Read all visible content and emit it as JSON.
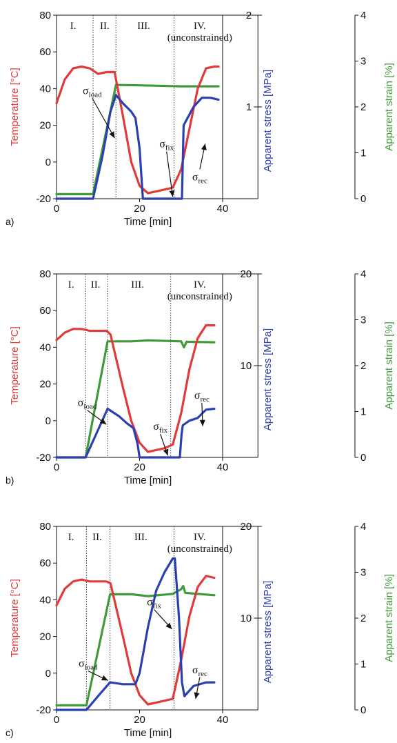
{
  "colors": {
    "temperature": "#e03a3a",
    "stress": "#2b3fb0",
    "strain": "#3f9a3a",
    "axis": "#111111"
  },
  "shared": {
    "xlabel": "Time [min]",
    "ylabel_left": "Temperature [°C]",
    "ylabel_stress": "Apparent stress [MPa]",
    "ylabel_strain": "Apparent strain [%]",
    "sigma": "σ",
    "sub_load": "load",
    "sub_fix": "fix",
    "sub_rec": "rec"
  },
  "chart_data": [
    {
      "type": "line",
      "panel_label": "a)",
      "xlabel": "Time [min]",
      "ylabel": "Temperature [°C]",
      "xlim": [
        0,
        40
      ],
      "ylim": [
        -20,
        80
      ],
      "x_ticks": [
        0,
        20,
        40
      ],
      "y_ticks": [
        -20,
        0,
        20,
        40,
        60,
        80
      ],
      "stress_axis": {
        "label": "Apparent stress [MPa]",
        "range": [
          0,
          2
        ],
        "ticks": [
          1,
          2
        ]
      },
      "strain_axis": {
        "label": "Apparent strain [%]",
        "range": [
          0,
          4
        ],
        "ticks": [
          0,
          1,
          2,
          3,
          4
        ]
      },
      "phases": [
        {
          "label": "I.",
          "x": 4
        },
        {
          "label": "II.",
          "x": 11.6
        },
        {
          "label": "III.",
          "x": 21
        },
        {
          "label": "IV.",
          "x": 34.5,
          "note": "(unconstrained)"
        }
      ],
      "phase_boundaries": [
        8.8,
        14.3,
        28.3
      ],
      "series": [
        {
          "axis": "temperature",
          "x": [
            0,
            2,
            4,
            6,
            8,
            10,
            12,
            14,
            16,
            18,
            20,
            22,
            24,
            26,
            28,
            30,
            32,
            34,
            36,
            38,
            39
          ],
          "y": [
            32,
            45,
            51,
            52,
            51,
            48,
            49,
            49,
            25,
            0,
            -13,
            -17,
            -16,
            -15,
            -14,
            -4,
            18,
            40,
            51,
            52,
            52
          ]
        },
        {
          "axis": "strain",
          "x": [
            0,
            8.8,
            14.3,
            20,
            30,
            39
          ],
          "y": [
            0.1,
            0.1,
            2.48,
            2.47,
            2.45,
            2.45
          ]
        },
        {
          "axis": "stress",
          "x": [
            0,
            8.8,
            11,
            13,
            14.3,
            16,
            18,
            19,
            20,
            20.8,
            29,
            30.2,
            30.6,
            33,
            35,
            37,
            39
          ],
          "y": [
            0,
            0,
            0.45,
            0.95,
            1.13,
            1.04,
            0.95,
            0.88,
            0.55,
            0,
            0,
            0,
            0.8,
            1.0,
            1.1,
            1.1,
            1.08
          ]
        }
      ],
      "annotations": [
        {
          "sub": "load",
          "x": 8.6,
          "y": 37,
          "ax": 14,
          "ay": 13
        },
        {
          "sub": "fix",
          "x": 26.5,
          "y": 8,
          "ax": 28,
          "ay": -19
        },
        {
          "sub": "rec",
          "x": 34.5,
          "y": -10,
          "ax": 35.8,
          "ay": 10
        }
      ]
    },
    {
      "type": "line",
      "panel_label": "b)",
      "xlabel": "Time [min]",
      "ylabel": "Temperature [°C]",
      "xlim": [
        0,
        40
      ],
      "ylim": [
        -20,
        80
      ],
      "x_ticks": [
        0,
        20,
        40
      ],
      "y_ticks": [
        -20,
        0,
        20,
        40,
        60,
        80
      ],
      "stress_axis": {
        "label": "Apparent stress [MPa]",
        "range": [
          0,
          20
        ],
        "ticks": [
          10,
          20
        ]
      },
      "strain_axis": {
        "label": "Apparent strain [%]",
        "range": [
          0,
          4
        ],
        "ticks": [
          0,
          1,
          2,
          3,
          4
        ]
      },
      "phases": [
        {
          "label": "I.",
          "x": 3.5
        },
        {
          "label": "II.",
          "x": 9.4
        },
        {
          "label": "III.",
          "x": 19.5
        },
        {
          "label": "IV.",
          "x": 34.5,
          "note": "(unconstrained)"
        }
      ],
      "phase_boundaries": [
        7,
        12.3,
        27.5
      ],
      "series": [
        {
          "axis": "temperature",
          "x": [
            0,
            2,
            4,
            6,
            8,
            10,
            12,
            13,
            16,
            18,
            20,
            22,
            24,
            26,
            28,
            30,
            32,
            34,
            36,
            38
          ],
          "y": [
            44,
            48,
            50,
            50,
            49,
            49,
            49,
            47,
            18,
            0,
            -12,
            -17,
            -16,
            -15,
            -13,
            4,
            28,
            45,
            52,
            52
          ]
        },
        {
          "axis": "strain",
          "x": [
            0,
            7,
            12.3,
            18,
            22,
            30,
            30.7,
            31.3,
            38
          ],
          "y": [
            0,
            0,
            2.53,
            2.53,
            2.55,
            2.53,
            2.4,
            2.52,
            2.51
          ]
        },
        {
          "axis": "stress",
          "x": [
            0,
            7,
            10,
            12.3,
            15,
            17,
            18.5,
            19.5,
            20,
            29.7,
            30.1,
            30.4,
            32,
            34,
            36,
            38
          ],
          "y": [
            0,
            0,
            3,
            5.3,
            4.5,
            3.7,
            3.2,
            1.5,
            0,
            0,
            2.5,
            3.5,
            4,
            4.3,
            5.2,
            5.3
          ]
        }
      ],
      "annotations": [
        {
          "sub": "load",
          "x": 7.4,
          "y": 8,
          "ax": 12,
          "ay": -2
        },
        {
          "sub": "fix",
          "x": 25,
          "y": -5,
          "ax": 26.8,
          "ay": -19
        },
        {
          "sub": "rec",
          "x": 35,
          "y": 12,
          "ax": 35.2,
          "ay": -3
        }
      ]
    },
    {
      "type": "line",
      "panel_label": "c)",
      "xlabel": "Time [min]",
      "ylabel": "Temperature [°C]",
      "xlim": [
        0,
        40
      ],
      "ylim": [
        -20,
        80
      ],
      "x_ticks": [
        0,
        20,
        40
      ],
      "y_ticks": [
        -20,
        0,
        20,
        40,
        60,
        80
      ],
      "stress_axis": {
        "label": "Apparent stress [MPa]",
        "range": [
          0,
          20
        ],
        "ticks": [
          10,
          20
        ]
      },
      "strain_axis": {
        "label": "Apparent strain [%]",
        "range": [
          0,
          4
        ],
        "ticks": [
          0,
          1,
          2,
          3,
          4
        ]
      },
      "phases": [
        {
          "label": "I.",
          "x": 3.5
        },
        {
          "label": "II.",
          "x": 9.8
        },
        {
          "label": "III.",
          "x": 20.3
        },
        {
          "label": "IV.",
          "x": 34.5,
          "note": "(unconstrained)"
        }
      ],
      "phase_boundaries": [
        7.2,
        12.9,
        28.3
      ],
      "series": [
        {
          "axis": "temperature",
          "x": [
            0,
            2,
            4,
            6,
            8,
            10,
            12,
            13,
            16,
            18,
            20,
            22,
            24,
            26,
            28,
            30,
            32,
            34,
            36,
            38
          ],
          "y": [
            37,
            46,
            50,
            51,
            50,
            50,
            50,
            49,
            20,
            0,
            -12,
            -17,
            -16,
            -15,
            -14,
            7,
            31,
            47,
            53,
            52
          ]
        },
        {
          "axis": "strain",
          "x": [
            0,
            7.2,
            12.9,
            18,
            22,
            28,
            30,
            30.5,
            31,
            38
          ],
          "y": [
            0.1,
            0.1,
            2.52,
            2.52,
            2.48,
            2.53,
            2.63,
            2.7,
            2.55,
            2.5
          ]
        },
        {
          "axis": "stress",
          "x": [
            0,
            7.2,
            10,
            12.9,
            16,
            19,
            20,
            22,
            24,
            26,
            28,
            28.5,
            29.5,
            30.2,
            30.8,
            33,
            36,
            38
          ],
          "y": [
            0,
            0,
            1.5,
            3,
            2.8,
            2.8,
            4,
            9,
            13,
            15,
            16.5,
            16.5,
            10,
            3,
            1.5,
            2.6,
            3,
            3
          ]
        }
      ],
      "annotations": [
        {
          "sub": "load",
          "x": 7.6,
          "y": 3.5,
          "ax": 12.4,
          "ay": -4
        },
        {
          "sub": "fix",
          "x": 23.5,
          "y": 37,
          "ax": 27.8,
          "ay": 24
        },
        {
          "sub": "rec",
          "x": 34.5,
          "y": 0,
          "ax": 33.5,
          "ay": -14
        }
      ]
    }
  ]
}
